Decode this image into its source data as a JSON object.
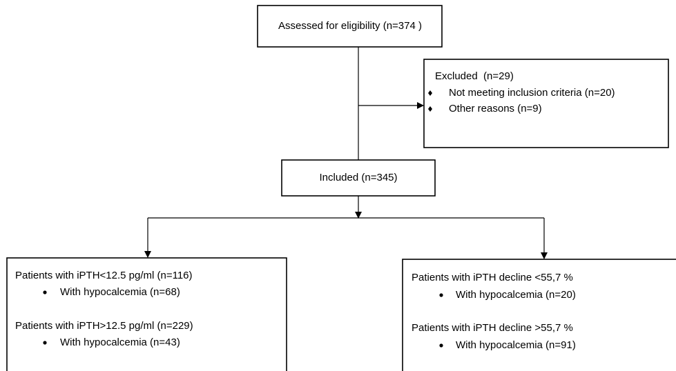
{
  "nodes": [
    {
      "label": "Assessed for eligibility (n=374 )"
    },
    {
      "label": "Excluded  (n=29)",
      "bullets": [
        "Not meeting inclusion criteria (n=20)",
        "Other reasons (n=9)"
      ]
    },
    {
      "label": "Included (n=345)"
    },
    {
      "groups": [
        {
          "label": "Patients with iPTH<12.5 pg/ml (n=116)",
          "bullets": [
            "With hypocalcemia (n=68)"
          ]
        },
        {
          "label": "Patients with iPTH>12.5 pg/ml (n=229)",
          "bullets": [
            "With hypocalcemia (n=43)"
          ]
        }
      ]
    },
    {
      "groups": [
        {
          "label": "Patients with iPTH decline <55,7 %",
          "bullets": [
            "With hypocalcemia (n=20)"
          ]
        },
        {
          "label": "Patients with iPTH decline >55,7 %",
          "bullets": [
            "With hypocalcemia (n=91)"
          ]
        }
      ]
    }
  ]
}
